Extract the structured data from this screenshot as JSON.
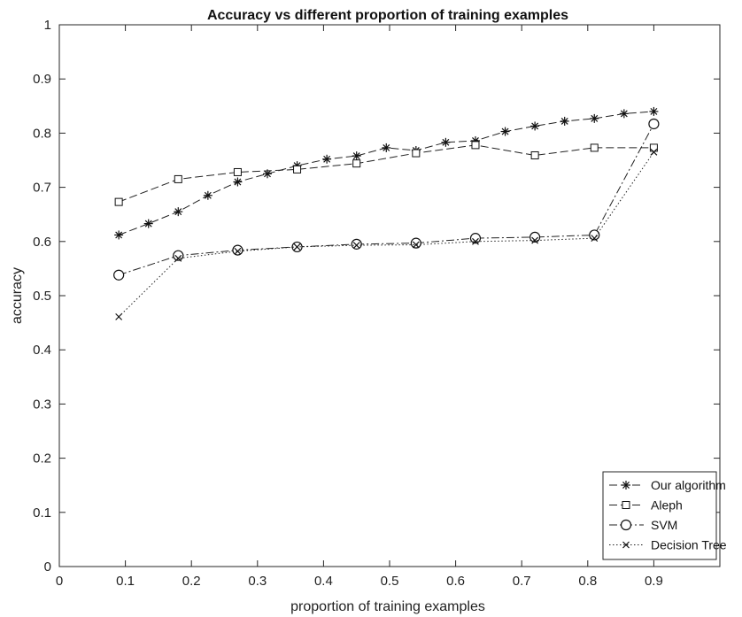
{
  "chart_data": {
    "type": "line",
    "title": "Accuracy vs different proportion of training examples",
    "xlabel": "proportion of training examples",
    "ylabel": "accuracy",
    "xlim": [
      0,
      1
    ],
    "ylim": [
      0,
      1
    ],
    "xticks": [
      "0",
      "0.1",
      "0.2",
      "0.3",
      "0.4",
      "0.5",
      "0.6",
      "0.7",
      "0.8",
      "0.9"
    ],
    "yticks": [
      "0",
      "0.1",
      "0.2",
      "0.3",
      "0.4",
      "0.5",
      "0.6",
      "0.7",
      "0.8",
      "0.9",
      "1"
    ],
    "grid": false,
    "legend_position": "bottom-right",
    "series": [
      {
        "name": "Our algorithm",
        "marker": "asterisk",
        "line_style": "dashed",
        "x": [
          0.09,
          0.135,
          0.18,
          0.225,
          0.27,
          0.315,
          0.36,
          0.405,
          0.45,
          0.495,
          0.54,
          0.585,
          0.63,
          0.675,
          0.72,
          0.765,
          0.81,
          0.855,
          0.9
        ],
        "y": [
          0.612,
          0.633,
          0.655,
          0.685,
          0.71,
          0.725,
          0.74,
          0.752,
          0.758,
          0.773,
          0.768,
          0.783,
          0.786,
          0.803,
          0.813,
          0.822,
          0.827,
          0.836,
          0.84
        ]
      },
      {
        "name": "Aleph",
        "marker": "square",
        "line_style": "dashed",
        "x": [
          0.09,
          0.18,
          0.27,
          0.36,
          0.45,
          0.54,
          0.63,
          0.72,
          0.81,
          0.9
        ],
        "y": [
          0.673,
          0.715,
          0.728,
          0.733,
          0.744,
          0.763,
          0.778,
          0.759,
          0.773,
          0.773
        ]
      },
      {
        "name": "SVM",
        "marker": "circle",
        "line_style": "dashdot",
        "x": [
          0.09,
          0.18,
          0.27,
          0.36,
          0.45,
          0.54,
          0.63,
          0.72,
          0.81,
          0.9
        ],
        "y": [
          0.538,
          0.574,
          0.584,
          0.59,
          0.595,
          0.597,
          0.606,
          0.608,
          0.612,
          0.817
        ]
      },
      {
        "name": "Decision Tree",
        "marker": "x",
        "line_style": "dotted",
        "x": [
          0.09,
          0.18,
          0.27,
          0.36,
          0.45,
          0.54,
          0.63,
          0.72,
          0.81,
          0.9
        ],
        "y": [
          0.461,
          0.569,
          0.582,
          0.59,
          0.593,
          0.594,
          0.6,
          0.602,
          0.606,
          0.765
        ]
      }
    ]
  }
}
